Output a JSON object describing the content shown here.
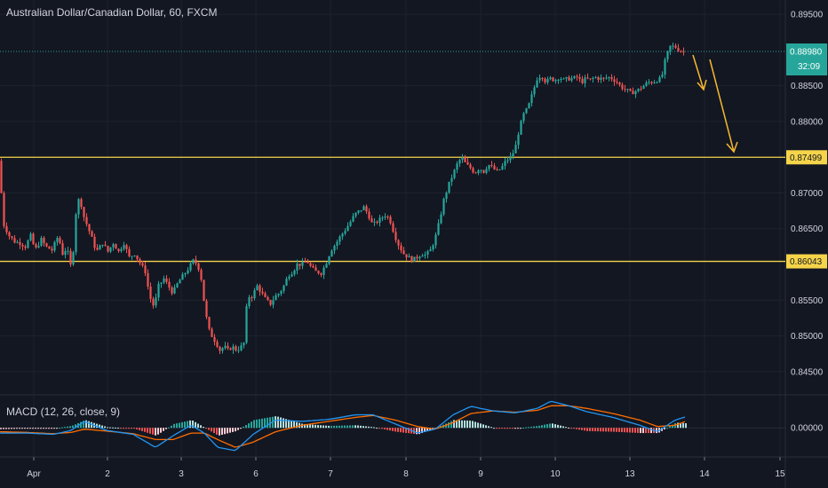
{
  "header": {
    "title": "Australian Dollar/Canadian Dollar, 60, FXCM"
  },
  "macd": {
    "label": "MACD (12, 26, close, 9)",
    "zero_label": "0.00000"
  },
  "countdown": "32:09",
  "colors": {
    "background": "#131722",
    "up": "#26a69a",
    "down": "#ef5350",
    "level": "#f5d44a",
    "current_price": "#26a69a",
    "macd_line": "#2196f3",
    "signal_line": "#ff6d00",
    "arrow": "#f5b82e"
  },
  "chart_data": {
    "type": "candlestick",
    "symbol": "Australian Dollar/Canadian Dollar",
    "timeframe": "60",
    "source": "FXCM",
    "ylim": [
      0.842,
      0.897
    ],
    "y_ticks": [
      "0.89500",
      "0.88500",
      "0.88000",
      "0.87000",
      "0.86500",
      "0.85500",
      "0.85000",
      "0.84500"
    ],
    "x_ticks": [
      "Apr",
      "2",
      "3",
      "6",
      "7",
      "8",
      "9",
      "10",
      "13",
      "14",
      "15"
    ],
    "price_levels": [
      {
        "value": 0.87499,
        "label": "0.87499"
      },
      {
        "value": 0.86043,
        "label": "0.86043"
      }
    ],
    "current_price": {
      "value": 0.8898,
      "label": "0.88980"
    },
    "path_anchors": [
      [
        0,
        0.8745
      ],
      [
        6,
        0.8655
      ],
      [
        12,
        0.864
      ],
      [
        18,
        0.8632
      ],
      [
        24,
        0.863
      ],
      [
        30,
        0.8625
      ],
      [
        36,
        0.864
      ],
      [
        41,
        0.862
      ],
      [
        48,
        0.8635
      ],
      [
        53,
        0.8625
      ],
      [
        60,
        0.862
      ],
      [
        67,
        0.864
      ],
      [
        72,
        0.8615
      ],
      [
        75,
        0.862
      ],
      [
        79,
        0.8615
      ],
      [
        82,
        0.859
      ],
      [
        85,
        0.8635
      ],
      [
        88,
        0.869
      ],
      [
        92,
        0.869
      ],
      [
        95,
        0.867
      ],
      [
        98,
        0.866
      ],
      [
        104,
        0.864
      ],
      [
        110,
        0.8618
      ],
      [
        117,
        0.863
      ],
      [
        123,
        0.8618
      ],
      [
        129,
        0.863
      ],
      [
        135,
        0.8618
      ],
      [
        141,
        0.863
      ],
      [
        147,
        0.861
      ],
      [
        153,
        0.8615
      ],
      [
        160,
        0.86
      ],
      [
        165,
        0.859
      ],
      [
        170,
        0.8555
      ],
      [
        175,
        0.854
      ],
      [
        180,
        0.857
      ],
      [
        186,
        0.858
      ],
      [
        191,
        0.857
      ],
      [
        196,
        0.856
      ],
      [
        202,
        0.8575
      ],
      [
        208,
        0.8585
      ],
      [
        214,
        0.8595
      ],
      [
        219,
        0.8605
      ],
      [
        224,
        0.86
      ],
      [
        228,
        0.858
      ],
      [
        232,
        0.854
      ],
      [
        236,
        0.851
      ],
      [
        240,
        0.85
      ],
      [
        245,
        0.849
      ],
      [
        249,
        0.848
      ],
      [
        254,
        0.8485
      ],
      [
        258,
        0.848
      ],
      [
        263,
        0.8485
      ],
      [
        268,
        0.848
      ],
      [
        273,
        0.8485
      ],
      [
        276,
        0.849
      ],
      [
        280,
        0.8555
      ],
      [
        285,
        0.8555
      ],
      [
        291,
        0.857
      ],
      [
        296,
        0.856
      ],
      [
        301,
        0.855
      ],
      [
        306,
        0.8545
      ],
      [
        311,
        0.8555
      ],
      [
        316,
        0.856
      ],
      [
        321,
        0.857
      ],
      [
        326,
        0.8585
      ],
      [
        331,
        0.859
      ],
      [
        336,
        0.86
      ],
      [
        341,
        0.86
      ],
      [
        347,
        0.8605
      ],
      [
        352,
        0.8595
      ],
      [
        357,
        0.859
      ],
      [
        363,
        0.8588
      ],
      [
        368,
        0.86
      ],
      [
        374,
        0.862
      ],
      [
        380,
        0.863
      ],
      [
        385,
        0.864
      ],
      [
        391,
        0.865
      ],
      [
        396,
        0.866
      ],
      [
        401,
        0.867
      ],
      [
        406,
        0.8675
      ],
      [
        411,
        0.868
      ],
      [
        416,
        0.867
      ],
      [
        421,
        0.8655
      ],
      [
        426,
        0.866
      ],
      [
        431,
        0.8665
      ],
      [
        436,
        0.867
      ],
      [
        441,
        0.866
      ],
      [
        446,
        0.864
      ],
      [
        451,
        0.8625
      ],
      [
        456,
        0.8615
      ],
      [
        461,
        0.861
      ],
      [
        466,
        0.8606
      ],
      [
        471,
        0.861
      ],
      [
        476,
        0.8615
      ],
      [
        481,
        0.8613
      ],
      [
        486,
        0.862
      ],
      [
        491,
        0.8635
      ],
      [
        496,
        0.866
      ],
      [
        501,
        0.869
      ],
      [
        506,
        0.871
      ],
      [
        511,
        0.8725
      ],
      [
        516,
        0.874
      ],
      [
        521,
        0.875
      ],
      [
        526,
        0.874
      ],
      [
        531,
        0.8735
      ],
      [
        536,
        0.8728
      ],
      [
        541,
        0.8735
      ],
      [
        546,
        0.873
      ],
      [
        551,
        0.874
      ],
      [
        556,
        0.8735
      ],
      [
        561,
        0.873
      ],
      [
        566,
        0.8735
      ],
      [
        571,
        0.8745
      ],
      [
        576,
        0.875
      ],
      [
        581,
        0.876
      ],
      [
        586,
        0.879
      ],
      [
        591,
        0.881
      ],
      [
        596,
        0.882
      ],
      [
        601,
        0.884
      ],
      [
        606,
        0.886
      ],
      [
        611,
        0.8865
      ],
      [
        616,
        0.8855
      ],
      [
        621,
        0.886
      ],
      [
        626,
        0.8858
      ],
      [
        631,
        0.8862
      ],
      [
        636,
        0.8858
      ],
      [
        641,
        0.886
      ],
      [
        646,
        0.886
      ],
      [
        651,
        0.8862
      ],
      [
        656,
        0.8855
      ],
      [
        661,
        0.886
      ],
      [
        666,
        0.8858
      ],
      [
        671,
        0.8862
      ],
      [
        676,
        0.886
      ],
      [
        681,
        0.886
      ],
      [
        686,
        0.8862
      ],
      [
        691,
        0.886
      ],
      [
        696,
        0.8855
      ],
      [
        701,
        0.8848
      ],
      [
        706,
        0.8845
      ],
      [
        711,
        0.884
      ],
      [
        716,
        0.8842
      ],
      [
        721,
        0.8845
      ],
      [
        726,
        0.885
      ],
      [
        731,
        0.8855
      ],
      [
        736,
        0.8855
      ],
      [
        741,
        0.8858
      ],
      [
        746,
        0.886
      ],
      [
        751,
        0.889
      ],
      [
        756,
        0.8905
      ],
      [
        761,
        0.8905
      ],
      [
        766,
        0.89
      ],
      [
        770,
        0.8898
      ]
    ],
    "macd": {
      "zero": 0.0,
      "ylim": [
        -0.0042,
        0.0048
      ],
      "macd_line": [
        [
          0,
          -0.0008
        ],
        [
          30,
          -0.0008
        ],
        [
          60,
          -0.001
        ],
        [
          80,
          -0.0004
        ],
        [
          95,
          0.001
        ],
        [
          120,
          -0.0004
        ],
        [
          150,
          -0.001
        ],
        [
          175,
          -0.003
        ],
        [
          195,
          -0.0012
        ],
        [
          215,
          0.0004
        ],
        [
          230,
          -0.0008
        ],
        [
          245,
          -0.003
        ],
        [
          265,
          -0.0035
        ],
        [
          285,
          -0.001
        ],
        [
          310,
          0.0012
        ],
        [
          340,
          0.001
        ],
        [
          370,
          0.0013
        ],
        [
          400,
          0.002
        ],
        [
          420,
          0.002
        ],
        [
          445,
          0.0006
        ],
        [
          470,
          -0.0008
        ],
        [
          490,
          -0.0002
        ],
        [
          510,
          0.002
        ],
        [
          530,
          0.0033
        ],
        [
          555,
          0.0026
        ],
        [
          580,
          0.0023
        ],
        [
          605,
          0.003
        ],
        [
          620,
          0.0041
        ],
        [
          640,
          0.0034
        ],
        [
          660,
          0.0025
        ],
        [
          690,
          0.0016
        ],
        [
          720,
          0.0004
        ],
        [
          740,
          -0.0006
        ],
        [
          760,
          0.0012
        ],
        [
          772,
          0.0017
        ]
      ],
      "signal_line": [
        [
          0,
          -0.0006
        ],
        [
          30,
          -0.0007
        ],
        [
          60,
          -0.0009
        ],
        [
          80,
          -0.0007
        ],
        [
          95,
          -0.0002
        ],
        [
          120,
          -0.0005
        ],
        [
          150,
          -0.0009
        ],
        [
          175,
          -0.0018
        ],
        [
          195,
          -0.0018
        ],
        [
          215,
          -0.0008
        ],
        [
          230,
          -0.0008
        ],
        [
          245,
          -0.0018
        ],
        [
          265,
          -0.003
        ],
        [
          285,
          -0.0022
        ],
        [
          310,
          -0.0006
        ],
        [
          340,
          0.0004
        ],
        [
          370,
          0.001
        ],
        [
          400,
          0.0016
        ],
        [
          420,
          0.0019
        ],
        [
          445,
          0.0012
        ],
        [
          470,
          0.0002
        ],
        [
          490,
          -0.0002
        ],
        [
          510,
          0.0008
        ],
        [
          530,
          0.0022
        ],
        [
          555,
          0.0026
        ],
        [
          580,
          0.0024
        ],
        [
          605,
          0.0027
        ],
        [
          620,
          0.0034
        ],
        [
          640,
          0.0034
        ],
        [
          660,
          0.003
        ],
        [
          690,
          0.0022
        ],
        [
          720,
          0.0012
        ],
        [
          740,
          0.0002
        ],
        [
          760,
          0.0004
        ],
        [
          772,
          0.001
        ]
      ]
    }
  }
}
